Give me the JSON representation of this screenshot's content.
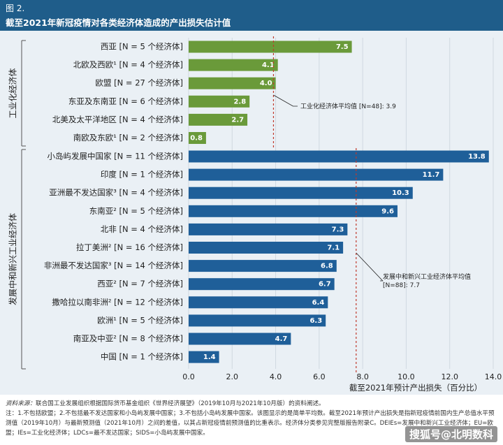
{
  "header": {
    "figure_number": "图 2.",
    "title": "截至2021年新冠疫情对各类经济体造成的产出损失估计值"
  },
  "chart_data": {
    "type": "bar",
    "orientation": "horizontal",
    "xlabel": "截至2021年预计产出损失（百分比）",
    "xlim": [
      0,
      14
    ],
    "xticks": [
      "0.0",
      "2.0",
      "4.0",
      "6.0",
      "8.0",
      "10.0",
      "12.0",
      "14.0"
    ],
    "grid": true,
    "groups": [
      {
        "name": "工业化经济体",
        "color": "#6a9a3a",
        "average": 3.9,
        "average_label": "工业化经济体平均值 [N=48]: 3.9",
        "categories": [
          "西亚 [N = 5 个经济体]",
          "北欧及西欧¹ [N = 4 个经济体]",
          "欧盟 [N = 27 个经济体]",
          "东亚及东南亚 [N = 6 个经济体]",
          "北美及太平洋地区 [N = 4 个经济体]",
          "南欧及东欧¹ [N = 2 个经济体]"
        ],
        "values": [
          7.5,
          4.1,
          4.0,
          2.8,
          2.7,
          0.8
        ]
      },
      {
        "name": "发展中和新兴工业经济体",
        "color": "#1f5f99",
        "average": 7.7,
        "average_label": "发展中和新兴工业经济体平均值 [N=88]: 7.7",
        "categories": [
          "小岛屿发展中国家 [N = 11 个经济体]",
          "印度 [N = 1 个经济体]",
          "亚洲最不发达国家³ [N = 4 个经济体]",
          "东南亚² [N = 5 个经济体]",
          "北非 [N = 4 个经济体]",
          "拉丁美洲² [N = 16 个经济体]",
          "非洲最不发达国家³ [N = 14 个经济体]",
          "西亚² [N = 7 个经济体]",
          "撒哈拉以南非洲² [N = 12 个经济体]",
          "欧洲¹ [N = 5 个经济体]",
          "南亚及中亚² [N = 8 个经济体]",
          "中国 [N = 1 个经济体]"
        ],
        "values": [
          13.8,
          11.7,
          10.3,
          9.6,
          7.3,
          7.1,
          6.8,
          6.7,
          6.4,
          6.3,
          4.7,
          1.4
        ]
      }
    ]
  },
  "notes": {
    "source_label": "资料来源：",
    "source": "联合国工业发展组织根据国际货币基金组织《世界经济展望》（2019年10月与2021年10月版）的资料阐述。",
    "notes_text": "注：1.不包括欧盟；2.不包括最不发达国家和小岛屿发展中国家；3.不包括小岛屿发展中国家。该图显示的是简单平均数。截至2021年预计产出损失是指新冠疫情前国内生产总值水平预测值（2019年10月）与最新预测值（2021年10月）之间的差值，以其占新冠疫情前预测值的比重表示。经济体分类参见完整版报告附录C。DEIEs=发展中和新兴工业经济体；EU=欧盟；IEs=工业化经济体；LDCs=最不发达国家；SIDS=小岛屿发展中国家。"
  },
  "watermark": "搜狐号@北明数科"
}
